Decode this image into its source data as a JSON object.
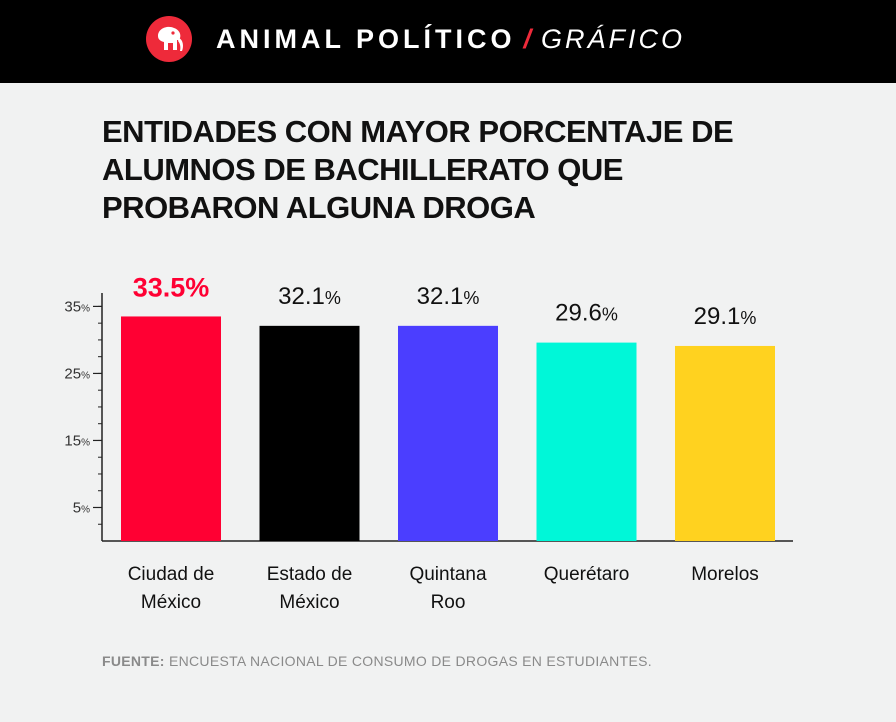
{
  "header": {
    "brand": "ANIMAL POLÍTICO",
    "separator": "/",
    "section": "GRÁFICO",
    "logo_icon": "elephant-logo-icon"
  },
  "title": "ENTIDADES CON MAYOR PORCENTAJE DE ALUMNOS DE BACHILLERATO QUE PROBARON ALGUNA DROGA",
  "source": {
    "label": "FUENTE:",
    "text": "ENCUESTA NACIONAL DE CONSUMO DE DROGAS EN ESTUDIANTES."
  },
  "chart_data": {
    "type": "bar",
    "title": "ENTIDADES CON MAYOR PORCENTAJE DE ALUMNOS DE BACHILLERATO QUE PROBARON ALGUNA DROGA",
    "xlabel": "",
    "ylabel": "",
    "ylim": [
      0,
      37
    ],
    "yticks": [
      5,
      15,
      25,
      35
    ],
    "ytick_unit": "%",
    "categories": [
      [
        "Ciudad de",
        "México"
      ],
      [
        "Estado de",
        "México"
      ],
      [
        "Quintana",
        "Roo"
      ],
      [
        "Querétaro"
      ],
      [
        "Morelos"
      ]
    ],
    "values": [
      33.5,
      32.1,
      32.1,
      29.6,
      29.1
    ],
    "value_labels": [
      "33.5",
      "32.1",
      "32.1",
      "29.6",
      "29.1"
    ],
    "value_unit": "%",
    "colors": [
      "#ff0033",
      "#000000",
      "#4b3eff",
      "#00f7d8",
      "#ffd21f"
    ],
    "highlight_color": "#ff0033",
    "highlight_index": 0
  }
}
